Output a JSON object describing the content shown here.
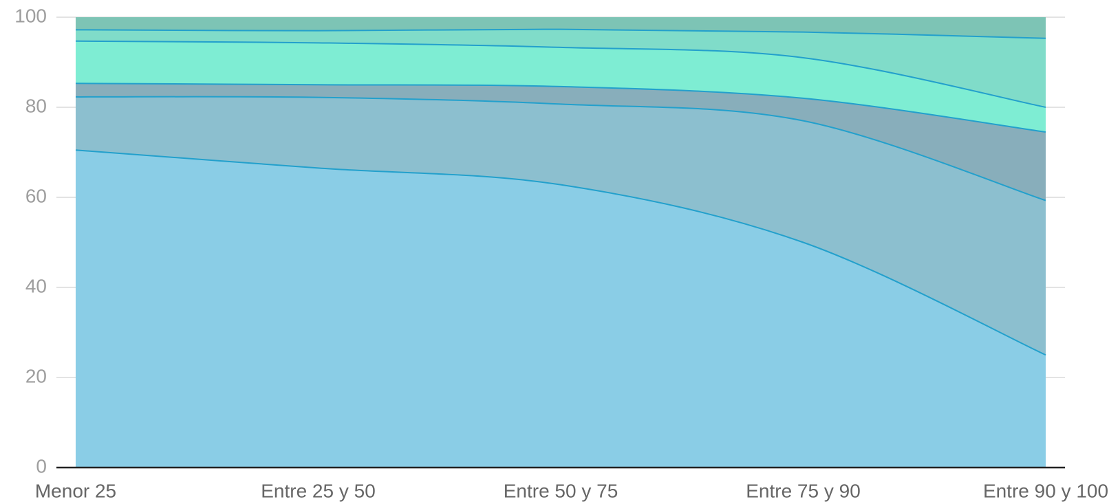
{
  "chart_data": {
    "type": "stacked_area",
    "categories": [
      "Menor 25",
      "Entre 25 y 50",
      "Entre 50 y 75",
      "Entre 75 y 90",
      "Entre 90 y 100"
    ],
    "series": [
      {
        "color": "#8acde6",
        "values": [
          70.5,
          66.5,
          62.8,
          50,
          25
        ]
      },
      {
        "color": "#8cbfcf",
        "values": [
          11.8,
          15.7,
          17.9,
          27,
          34.3
        ]
      },
      {
        "color": "#88aebb",
        "values": [
          3,
          2.8,
          3.9,
          5,
          15.2
        ]
      },
      {
        "color": "#7eedd3",
        "values": [
          9.4,
          9.3,
          8.7,
          9,
          5.5
        ]
      },
      {
        "color": "#80dcc9",
        "values": [
          2.5,
          2.7,
          4,
          5.7,
          15.3
        ]
      },
      {
        "color": "#7dc4b5",
        "values": [
          2.8,
          3,
          2.7,
          3.3,
          4.7
        ]
      }
    ],
    "ylim": [
      0,
      100
    ],
    "yticks": [
      0,
      20,
      40,
      60,
      80,
      100
    ],
    "grid": true
  }
}
